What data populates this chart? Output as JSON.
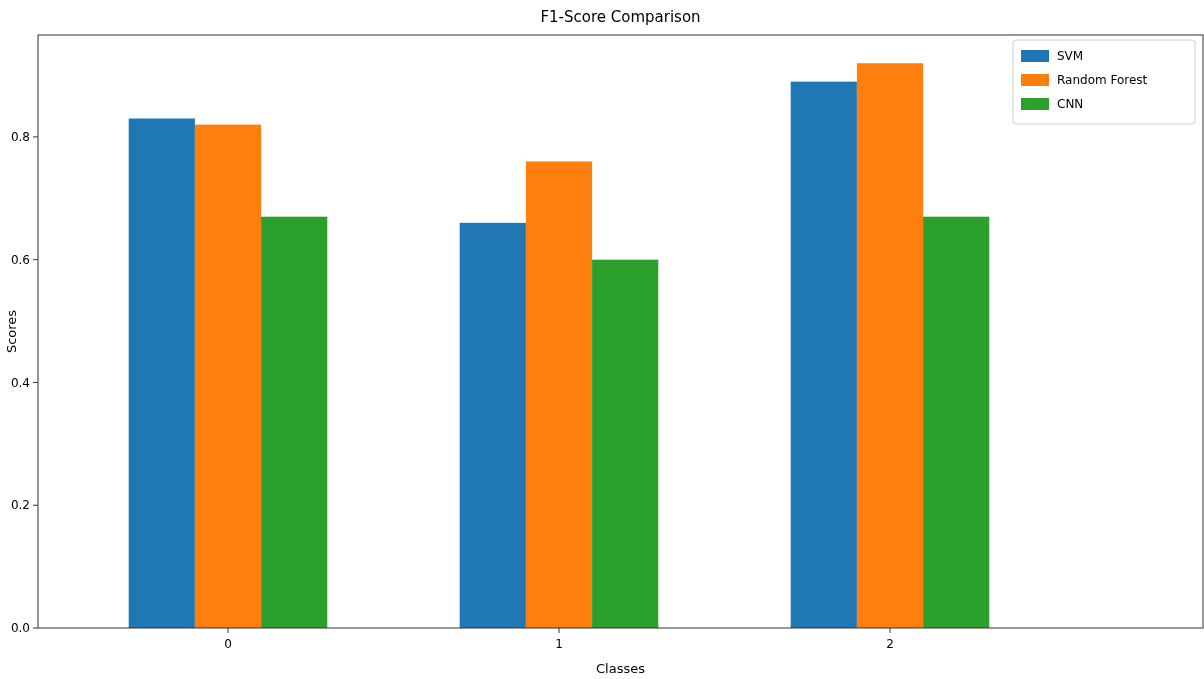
{
  "chart_data": {
    "type": "bar",
    "title": "F1-Score Comparison",
    "xlabel": "Classes",
    "ylabel": "Scores",
    "categories": [
      "0",
      "1",
      "2"
    ],
    "series": [
      {
        "name": "SVM",
        "color": "#1f77b4",
        "values": [
          0.83,
          0.66,
          0.89
        ]
      },
      {
        "name": "Random Forest",
        "color": "#ff7f0e",
        "values": [
          0.82,
          0.76,
          0.92
        ]
      },
      {
        "name": "CNN",
        "color": "#2ca02c",
        "values": [
          0.67,
          0.6,
          0.67
        ]
      }
    ],
    "ylim": [
      0,
      0.966
    ],
    "yticks": [
      {
        "value": 0,
        "label": "0.0"
      },
      {
        "value": 0.2,
        "label": "0.2"
      },
      {
        "value": 0.4,
        "label": "0.4"
      },
      {
        "value": 0.6,
        "label": "0.6"
      },
      {
        "value": 0.8,
        "label": "0.8"
      }
    ],
    "grid": false,
    "legend": "top right"
  }
}
